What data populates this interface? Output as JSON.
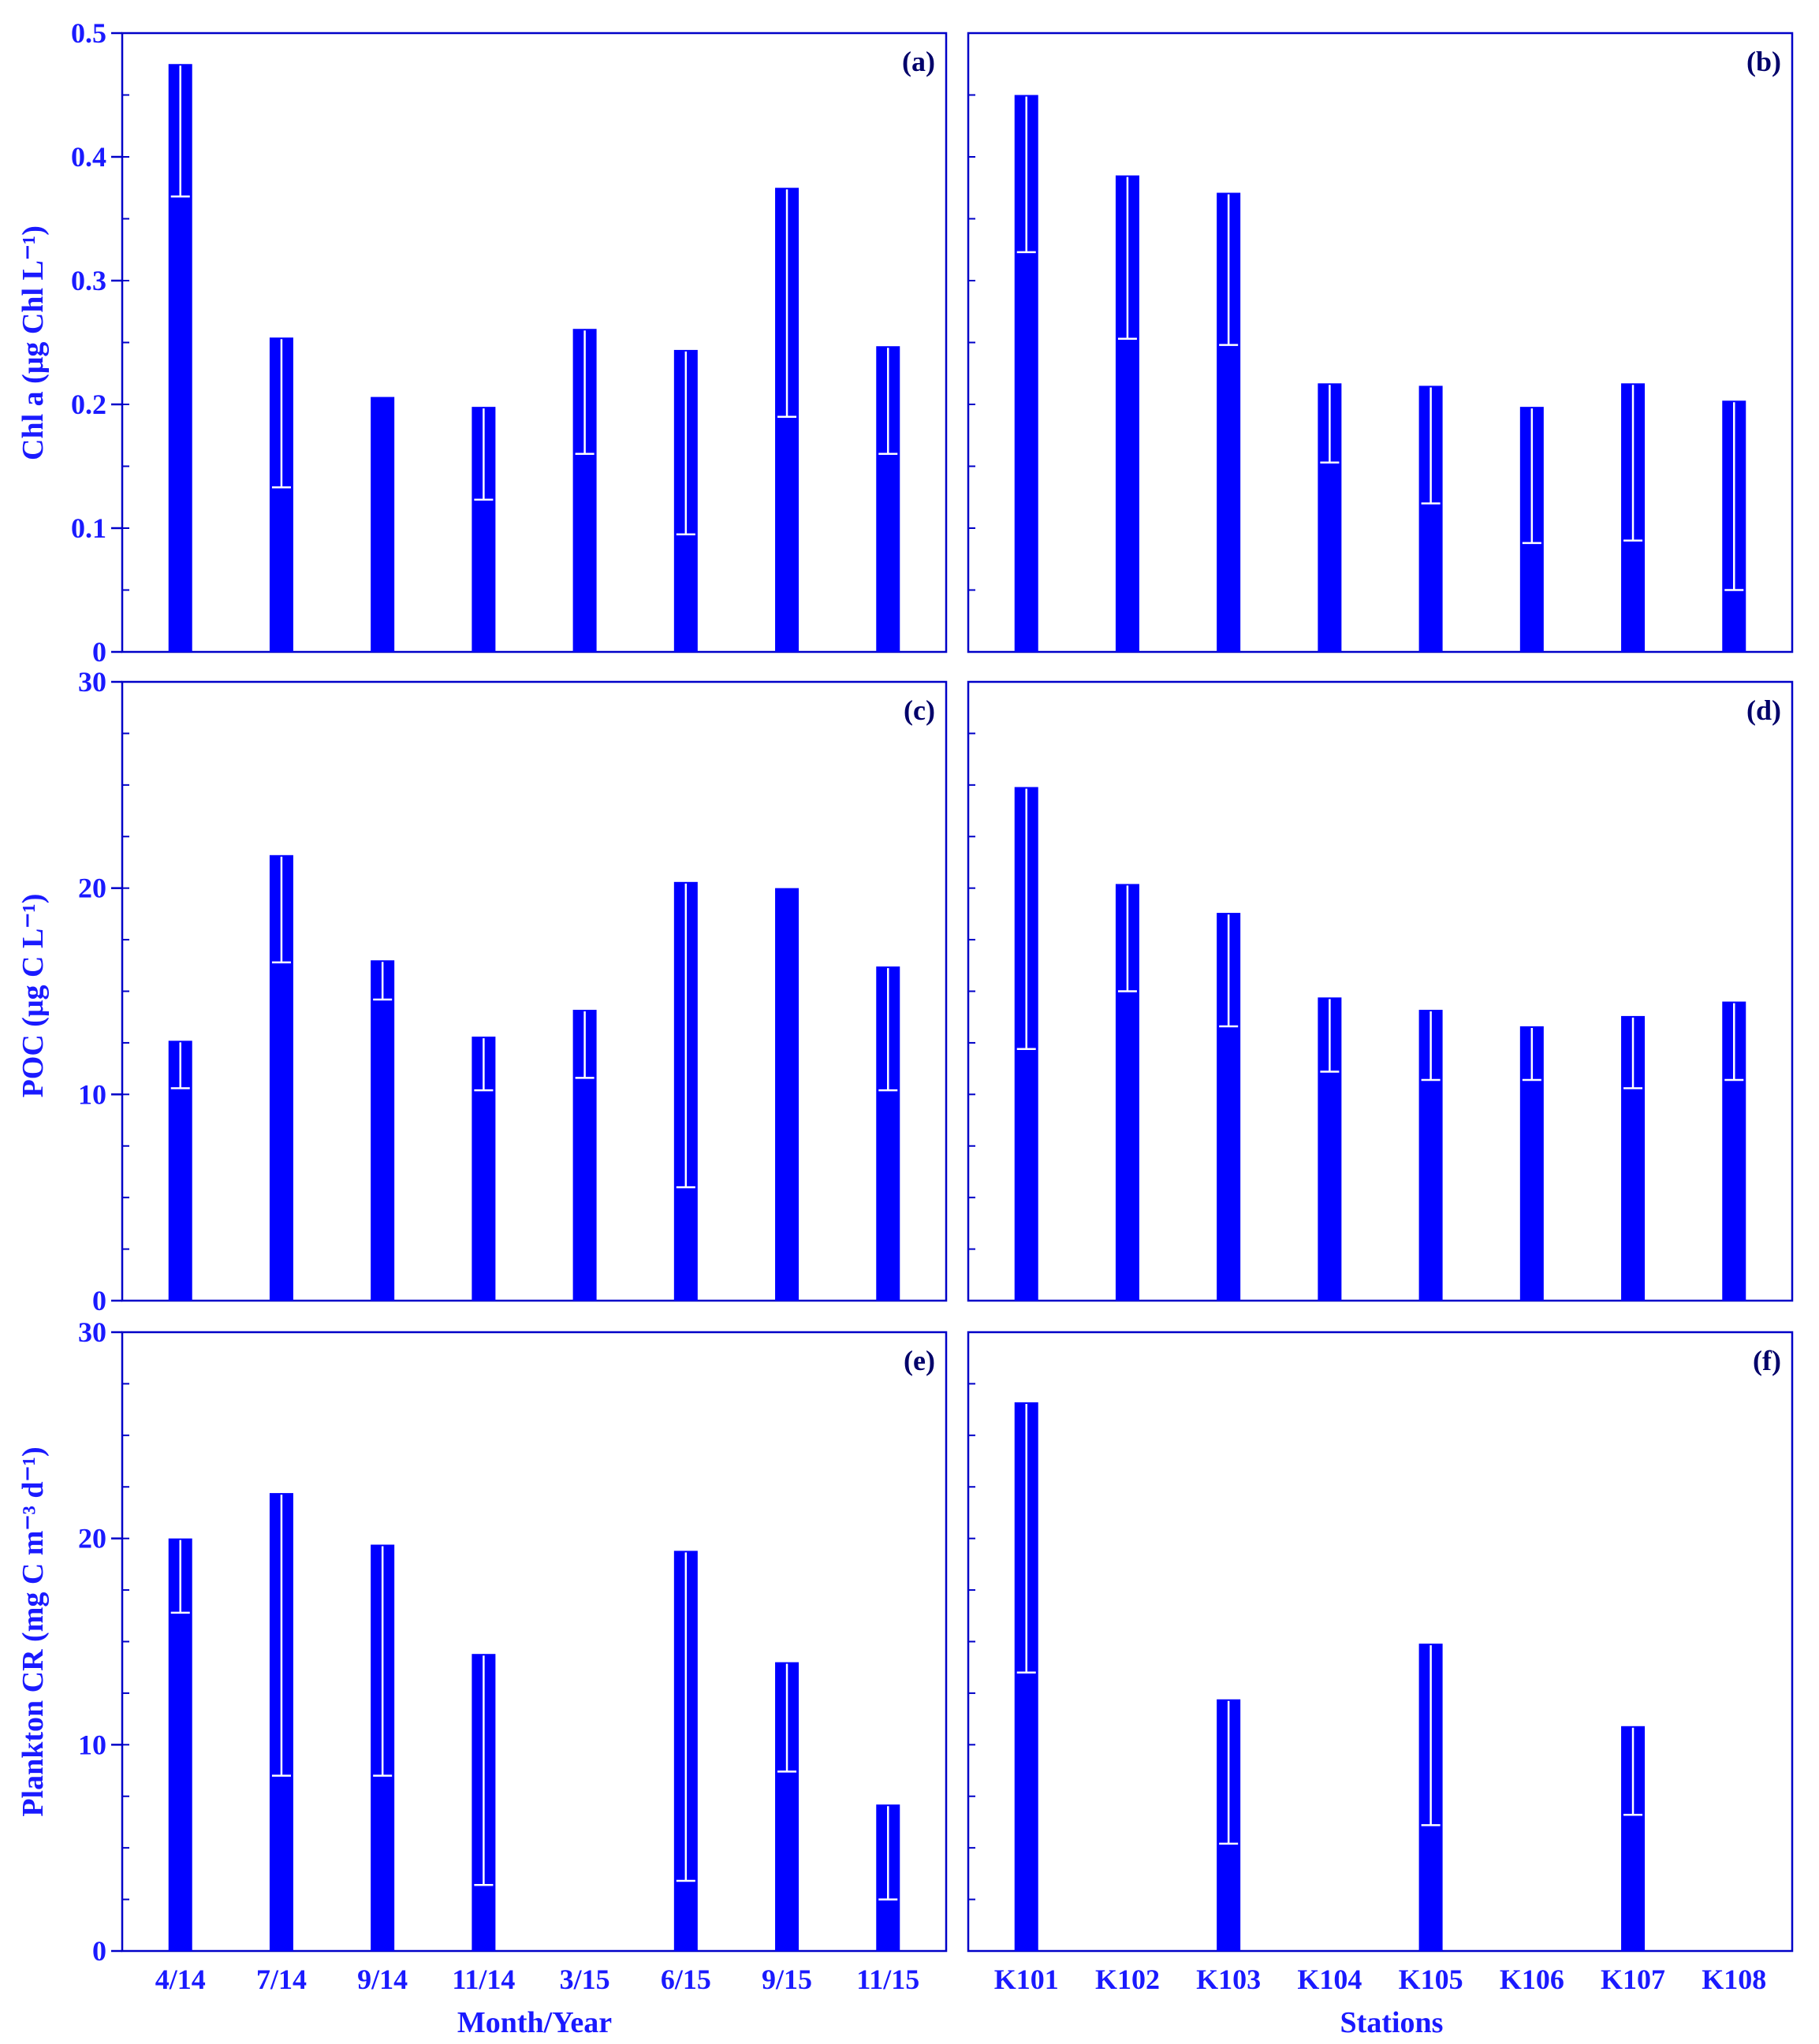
{
  "figure": {
    "bar_color": "#0000ff",
    "axis_color": "#0000c8",
    "text_color": "#1a1aff",
    "xlabels": {
      "left": "Month/Year",
      "right": "Stations"
    },
    "ylabels": {
      "row1": "Chl a (μg Chl L⁻¹)",
      "row2": "POC (μg C L⁻¹)",
      "row3": "Plankton CR (mg C m⁻³ d⁻¹)"
    }
  },
  "chart_data": [
    {
      "panel": "(a)",
      "type": "bar",
      "categories": [
        "4/14",
        "7/14",
        "9/14",
        "11/14",
        "3/15",
        "6/15",
        "9/15",
        "11/15"
      ],
      "values": [
        0.475,
        0.254,
        0.206,
        0.198,
        0.261,
        0.244,
        0.375,
        0.247
      ],
      "error_lower": [
        0.368,
        0.133,
        0.206,
        0.123,
        0.16,
        0.095,
        0.19,
        0.16
      ],
      "ylabel": "Chl a (μg Chl L⁻¹)",
      "ylim": [
        0,
        0.5
      ],
      "yticks": [
        "0",
        "0.1",
        "0.2",
        "0.3",
        "0.4",
        "0.5"
      ]
    },
    {
      "panel": "(b)",
      "type": "bar",
      "categories": [
        "K101",
        "K102",
        "K103",
        "K104",
        "K105",
        "K106",
        "K107",
        "K108"
      ],
      "values": [
        0.45,
        0.385,
        0.371,
        0.217,
        0.215,
        0.198,
        0.217,
        0.203
      ],
      "error_lower": [
        0.323,
        0.253,
        0.248,
        0.153,
        0.12,
        0.088,
        0.09,
        0.05
      ],
      "ylim": [
        0,
        0.5
      ]
    },
    {
      "panel": "(c)",
      "type": "bar",
      "categories": [
        "4/14",
        "7/14",
        "9/14",
        "11/14",
        "3/15",
        "6/15",
        "9/15",
        "11/15"
      ],
      "values": [
        12.6,
        21.6,
        16.5,
        12.8,
        14.1,
        20.3,
        20.0,
        16.2
      ],
      "error_lower": [
        10.3,
        16.4,
        14.6,
        10.2,
        10.8,
        5.5,
        20.0,
        10.2
      ],
      "ylabel": "POC (μg C L⁻¹)",
      "ylim": [
        0,
        30
      ],
      "yticks": [
        "0",
        "10",
        "20",
        "30"
      ]
    },
    {
      "panel": "(d)",
      "type": "bar",
      "categories": [
        "K101",
        "K102",
        "K103",
        "K104",
        "K105",
        "K106",
        "K107",
        "K108"
      ],
      "values": [
        24.9,
        20.2,
        18.8,
        14.7,
        14.1,
        13.3,
        13.8,
        14.5
      ],
      "error_lower": [
        12.2,
        15.0,
        13.3,
        11.1,
        10.7,
        10.7,
        10.3,
        10.7
      ],
      "ylim": [
        0,
        30
      ]
    },
    {
      "panel": "(e)",
      "type": "bar",
      "categories": [
        "4/14",
        "7/14",
        "9/14",
        "11/14",
        "3/15",
        "6/15",
        "9/15",
        "11/15"
      ],
      "values": [
        20.0,
        22.2,
        19.7,
        14.4,
        0,
        19.4,
        14.0,
        7.1
      ],
      "error_lower": [
        16.4,
        8.5,
        8.5,
        3.2,
        0,
        3.4,
        8.7,
        2.5
      ],
      "ylabel": "Plankton CR (mg C m⁻³ d⁻¹)",
      "ylim": [
        0,
        30
      ],
      "yticks": [
        "0",
        "10",
        "20",
        "30"
      ],
      "xlabel": "Month/Year"
    },
    {
      "panel": "(f)",
      "type": "bar",
      "categories": [
        "K101",
        "K102",
        "K103",
        "K104",
        "K105",
        "K106",
        "K107",
        "K108"
      ],
      "values": [
        26.6,
        0,
        12.2,
        0,
        14.9,
        0,
        10.9,
        0
      ],
      "error_lower": [
        13.5,
        0,
        5.2,
        0,
        6.1,
        0,
        6.6,
        0
      ],
      "ylim": [
        0,
        30
      ],
      "xlabel": "Stations"
    }
  ]
}
